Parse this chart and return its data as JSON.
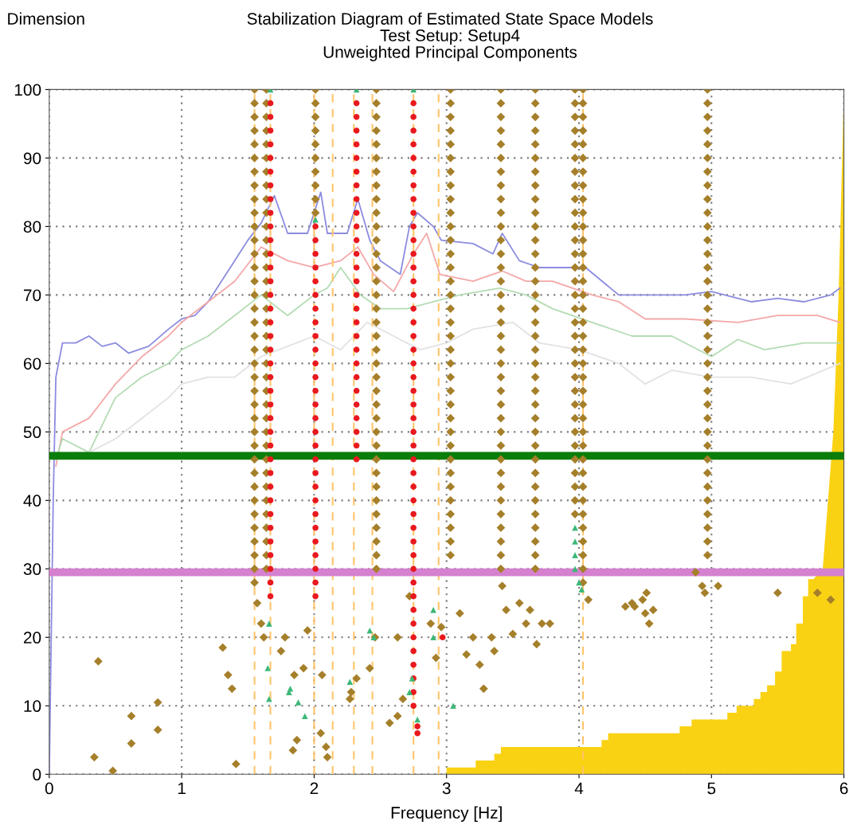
{
  "chart_data": {
    "type": "scatter",
    "title": "Stabilization Diagram of Estimated State Space Models\nTest Setup: Setup4\nUnweighted Principal Components",
    "xlabel": "Frequency [Hz]",
    "ylabel": "Dimension",
    "xlim": [
      0,
      6
    ],
    "ylim": [
      0,
      100
    ],
    "xticks": [
      0,
      1,
      2,
      3,
      4,
      5,
      6
    ],
    "yticks": [
      0,
      10,
      20,
      30,
      40,
      50,
      60,
      70,
      80,
      90,
      100
    ],
    "grid": true,
    "legend": false,
    "ref_lines": [
      {
        "axis": "y",
        "value": 46.5,
        "color": "#0a7d0a",
        "line_style": "solid"
      },
      {
        "axis": "y",
        "value": 29.5,
        "color": "#d680d0",
        "line_style": "solid"
      },
      {
        "axis": "x",
        "value": 1.55,
        "color": "#ffc468",
        "line_style": "dashed"
      },
      {
        "axis": "x",
        "value": 1.67,
        "color": "#ffc468",
        "line_style": "dashed"
      },
      {
        "axis": "x",
        "value": 2.0,
        "color": "#ffc468",
        "line_style": "dashed"
      },
      {
        "axis": "x",
        "value": 2.14,
        "color": "#ffc468",
        "line_style": "dashed"
      },
      {
        "axis": "x",
        "value": 2.3,
        "color": "#ffc468",
        "line_style": "dashed"
      },
      {
        "axis": "x",
        "value": 2.44,
        "color": "#ffc468",
        "line_style": "dashed"
      },
      {
        "axis": "x",
        "value": 2.75,
        "color": "#ffc468",
        "line_style": "dashed"
      },
      {
        "axis": "x",
        "value": 2.94,
        "color": "#ffc468",
        "line_style": "dashed"
      },
      {
        "axis": "x",
        "value": 4.03,
        "color": "#ffc468",
        "line_style": "dashed"
      }
    ],
    "series": [
      {
        "type": "area",
        "color": "#fad214",
        "x": [
          3.0,
          3.22,
          3.22,
          3.36,
          3.36,
          3.41,
          3.41,
          4.17,
          4.17,
          4.22,
          4.22,
          4.76,
          4.76,
          4.85,
          4.85,
          5.12,
          5.12,
          5.19,
          5.19,
          5.32,
          5.32,
          5.37,
          5.37,
          5.42,
          5.42,
          5.48,
          5.48,
          5.53,
          5.53,
          5.6,
          5.6,
          5.64,
          5.64,
          5.69,
          5.69,
          5.73,
          5.73,
          5.77,
          5.84,
          5.88,
          5.92,
          5.96,
          6.0
        ],
        "values": [
          1,
          1,
          2,
          2,
          3,
          3,
          4,
          4,
          5,
          5,
          6,
          6,
          7,
          7,
          8,
          8,
          9,
          9,
          10,
          10,
          11,
          11,
          12,
          12,
          13,
          13,
          15,
          15,
          18,
          18,
          19,
          19,
          22,
          22,
          26,
          26,
          28.5,
          28.5,
          30,
          40,
          50,
          70,
          100
        ]
      },
      {
        "type": "line",
        "color": "#8c8ce0",
        "x": [
          0,
          0.03,
          0.05,
          0.1,
          0.2,
          0.3,
          0.4,
          0.5,
          0.6,
          0.75,
          0.9,
          1.0,
          1.1,
          1.2,
          1.3,
          1.4,
          1.5,
          1.6,
          1.7,
          1.8,
          1.95,
          2.05,
          2.1,
          2.25,
          2.33,
          2.42,
          2.5,
          2.65,
          2.72,
          2.78,
          2.9,
          2.96,
          3.2,
          3.35,
          3.42,
          3.55,
          3.7,
          3.9,
          4.05,
          4.3,
          4.5,
          4.8,
          5.0,
          5.3,
          5.5,
          5.7,
          5.9,
          5.97
        ],
        "values": [
          0,
          40,
          58,
          63,
          63,
          64,
          62.5,
          63,
          61.5,
          62.5,
          65,
          66.5,
          67,
          69,
          72,
          75,
          78,
          80.5,
          84.5,
          79,
          79,
          85,
          79,
          79,
          84,
          78,
          75,
          73,
          80,
          82,
          80,
          78,
          77.5,
          76,
          79,
          75,
          74,
          74,
          74,
          70,
          70,
          70,
          70.5,
          69,
          69.5,
          69,
          70,
          71
        ]
      },
      {
        "type": "line",
        "color": "#f4a8a8",
        "x": [
          0.05,
          0.1,
          0.3,
          0.5,
          0.7,
          0.9,
          1.0,
          1.2,
          1.4,
          1.6,
          1.8,
          2.0,
          2.2,
          2.33,
          2.45,
          2.6,
          2.75,
          2.85,
          2.95,
          3.2,
          3.42,
          3.6,
          3.8,
          4.1,
          4.3,
          4.5,
          4.8,
          5.2,
          5.5,
          5.8,
          5.97
        ],
        "values": [
          45,
          50,
          52,
          57,
          61,
          64,
          66,
          69,
          72,
          77,
          75,
          74,
          75,
          77,
          73,
          70.5,
          76,
          79,
          73,
          72,
          73.5,
          72,
          72,
          70,
          69,
          66.5,
          66.5,
          66,
          67,
          67,
          66
        ]
      },
      {
        "type": "line",
        "color": "#b4dcb4",
        "x": [
          0.05,
          0.1,
          0.3,
          0.5,
          0.7,
          0.9,
          1.0,
          1.2,
          1.4,
          1.6,
          1.8,
          2.0,
          2.1,
          2.2,
          2.35,
          2.5,
          2.7,
          2.9,
          3.1,
          3.4,
          3.6,
          3.8,
          4.1,
          4.4,
          4.7,
          5.0,
          5.2,
          5.4,
          5.7,
          5.97
        ],
        "values": [
          46,
          49,
          47,
          55,
          58,
          60,
          62,
          64,
          67,
          70,
          67,
          70,
          71,
          74,
          70,
          68,
          68,
          69,
          70,
          71,
          70,
          68,
          66,
          64,
          64,
          61,
          63.5,
          62,
          63,
          63
        ]
      },
      {
        "type": "line",
        "color": "#e2e2e2",
        "x": [
          0.05,
          0.3,
          0.5,
          0.7,
          0.9,
          1.0,
          1.2,
          1.4,
          1.6,
          1.8,
          2.0,
          2.2,
          2.4,
          2.6,
          2.8,
          3.0,
          3.2,
          3.5,
          3.7,
          4.0,
          4.3,
          4.5,
          4.7,
          5.0,
          5.3,
          5.6,
          5.97
        ],
        "values": [
          46,
          47,
          49,
          52,
          55,
          57,
          58,
          58,
          61,
          62.5,
          64,
          62,
          66,
          64,
          62,
          63,
          65,
          66,
          63,
          62,
          60,
          57,
          59,
          58,
          58,
          57,
          60
        ]
      },
      {
        "type": "scatter",
        "marker": "diamond",
        "color": "#a57f2a",
        "x": [
          1.55,
          1.55,
          1.55,
          1.55,
          1.55,
          1.55,
          1.55,
          1.55,
          1.55,
          1.55,
          1.55,
          1.55,
          1.55,
          1.55,
          1.55,
          1.55,
          1.55,
          1.55,
          1.55,
          1.55,
          1.55,
          1.55,
          1.55,
          1.55,
          1.55,
          1.55,
          1.55,
          1.55,
          1.55,
          1.55,
          1.55,
          1.55,
          1.55,
          1.55,
          1.55,
          1.55,
          1.55
        ],
        "values": [
          28,
          30,
          32,
          34,
          36,
          38,
          40,
          42,
          44,
          46,
          48,
          50,
          52,
          54,
          56,
          58,
          60,
          62,
          64,
          66,
          68,
          70,
          72,
          74,
          76,
          78,
          80,
          82,
          84,
          86,
          88,
          90,
          92,
          94,
          96,
          98,
          100
        ]
      },
      {
        "type": "scatter",
        "marker": "diamond",
        "color": "#a57f2a",
        "x": [
          1.64,
          1.64,
          1.64,
          1.64,
          1.64,
          1.64,
          1.64,
          1.64,
          1.64,
          1.64,
          1.64,
          1.64,
          1.64,
          1.64,
          1.64,
          1.64,
          1.64,
          1.64,
          1.64,
          1.64,
          1.64,
          1.64,
          1.64,
          1.64,
          1.64,
          1.64,
          1.64,
          1.64,
          1.64,
          1.64,
          1.64,
          1.64,
          1.64,
          1.64,
          1.64,
          1.64
        ],
        "values": [
          30,
          32,
          34,
          36,
          38,
          40,
          42,
          44,
          46,
          48,
          50,
          52,
          54,
          56,
          58,
          60,
          62,
          64,
          66,
          68,
          70,
          72,
          74,
          76,
          78,
          80,
          82,
          84,
          86,
          88,
          90,
          92,
          94,
          96,
          98,
          100
        ]
      },
      {
        "type": "scatter",
        "marker": "diamond",
        "color": "#a57f2a",
        "x": [
          2.01,
          2.01,
          2.01,
          2.01,
          2.01,
          2.01,
          2.01,
          2.01,
          2.01,
          2.01
        ],
        "values": [
          82,
          84,
          86,
          88,
          90,
          92,
          94,
          96,
          98,
          100
        ]
      },
      {
        "type": "scatter",
        "marker": "diamond",
        "color": "#a57f2a",
        "x": [
          2.47,
          2.47,
          2.47,
          2.47,
          2.47,
          2.47,
          2.47,
          2.47,
          2.47,
          2.47,
          2.47,
          2.47,
          2.47,
          2.47,
          2.47,
          2.47,
          2.47,
          2.47,
          2.47,
          2.47,
          2.47,
          2.47,
          2.47,
          2.47,
          2.47,
          2.47,
          2.47,
          2.47,
          2.47,
          2.47,
          2.47,
          2.47,
          2.47,
          2.47,
          2.47,
          2.47
        ],
        "values": [
          30,
          32,
          34,
          36,
          38,
          40,
          42,
          44,
          46,
          48,
          50,
          52,
          54,
          56,
          58,
          60,
          62,
          64,
          66,
          68,
          70,
          72,
          74,
          76,
          78,
          80,
          82,
          84,
          86,
          88,
          90,
          92,
          94,
          96,
          98,
          100
        ]
      },
      {
        "type": "scatter",
        "marker": "diamond",
        "color": "#a57f2a",
        "x": [
          3.03,
          3.03,
          3.03,
          3.03,
          3.03,
          3.03,
          3.03,
          3.03,
          3.03,
          3.03,
          3.03,
          3.03,
          3.03,
          3.03,
          3.03,
          3.03,
          3.03,
          3.03,
          3.03,
          3.03,
          3.03,
          3.03,
          3.03,
          3.03,
          3.03,
          3.03,
          3.03,
          3.03,
          3.03,
          3.03,
          3.03,
          3.03,
          3.03,
          3.03,
          3.03
        ],
        "values": [
          32,
          34,
          36,
          38,
          40,
          42,
          44,
          46,
          48,
          50,
          52,
          54,
          56,
          58,
          60,
          62,
          64,
          66,
          68,
          70,
          72,
          74,
          76,
          78,
          80,
          82,
          84,
          86,
          88,
          90,
          92,
          94,
          96,
          98,
          100
        ]
      },
      {
        "type": "scatter",
        "marker": "diamond",
        "color": "#a57f2a",
        "x": [
          3.41,
          3.41,
          3.41,
          3.41,
          3.41,
          3.41,
          3.41,
          3.41,
          3.41,
          3.41,
          3.41,
          3.41,
          3.41,
          3.41,
          3.41,
          3.41,
          3.41,
          3.41,
          3.41,
          3.41,
          3.41,
          3.41,
          3.41,
          3.41,
          3.41,
          3.41,
          3.41,
          3.41,
          3.41,
          3.41,
          3.41,
          3.41,
          3.41,
          3.41,
          3.41,
          3.41
        ],
        "values": [
          30,
          32,
          34,
          36,
          38,
          40,
          42,
          44,
          46,
          48,
          50,
          52,
          54,
          56,
          58,
          60,
          62,
          64,
          66,
          68,
          70,
          72,
          74,
          76,
          78,
          80,
          82,
          84,
          86,
          88,
          90,
          92,
          94,
          96,
          98,
          100
        ]
      },
      {
        "type": "scatter",
        "marker": "diamond",
        "color": "#a57f2a",
        "x": [
          3.67,
          3.67,
          3.67,
          3.67,
          3.67,
          3.67,
          3.67,
          3.67,
          3.67,
          3.67,
          3.67,
          3.67,
          3.67,
          3.67,
          3.67,
          3.67,
          3.67,
          3.67,
          3.67,
          3.67,
          3.67,
          3.67,
          3.67,
          3.67,
          3.67,
          3.67,
          3.67,
          3.67,
          3.67,
          3.67,
          3.67,
          3.67,
          3.67,
          3.67,
          3.67,
          3.67
        ],
        "values": [
          30,
          32,
          34,
          36,
          38,
          40,
          42,
          44,
          46,
          48,
          50,
          52,
          54,
          56,
          58,
          60,
          62,
          64,
          66,
          68,
          70,
          72,
          74,
          76,
          78,
          80,
          82,
          84,
          86,
          88,
          90,
          92,
          94,
          96,
          98,
          100
        ]
      },
      {
        "type": "scatter",
        "marker": "diamond",
        "color": "#a57f2a",
        "x": [
          3.97,
          3.97,
          3.97,
          3.97,
          3.97,
          3.97,
          3.97,
          3.97,
          3.97,
          3.97,
          3.97,
          3.97,
          3.97,
          3.97,
          3.97,
          3.97,
          3.97,
          3.97,
          3.97,
          3.97,
          3.97,
          3.97,
          3.97,
          3.97,
          3.97,
          3.97,
          3.97,
          3.97,
          3.97,
          3.97,
          3.97,
          3.97
        ],
        "values": [
          38,
          40,
          42,
          44,
          46,
          48,
          50,
          52,
          54,
          56,
          58,
          60,
          62,
          64,
          66,
          68,
          70,
          72,
          74,
          76,
          78,
          80,
          82,
          84,
          86,
          88,
          90,
          92,
          94,
          96,
          98,
          100
        ]
      },
      {
        "type": "scatter",
        "marker": "diamond",
        "color": "#a57f2a",
        "x": [
          4.03,
          4.03,
          4.03,
          4.03,
          4.03,
          4.03,
          4.03,
          4.03,
          4.03,
          4.03,
          4.03,
          4.03,
          4.03,
          4.03,
          4.03,
          4.03,
          4.03,
          4.03,
          4.03,
          4.03,
          4.03,
          4.03,
          4.03,
          4.03,
          4.03,
          4.03,
          4.03,
          4.03,
          4.03,
          4.03,
          4.03,
          4.03,
          4.03,
          4.03,
          4.03,
          4.03,
          4.03
        ],
        "values": [
          28,
          30,
          32,
          34,
          36,
          38,
          40,
          42,
          44,
          46,
          48,
          50,
          52,
          54,
          56,
          58,
          60,
          62,
          64,
          66,
          68,
          70,
          72,
          74,
          76,
          78,
          80,
          82,
          84,
          86,
          88,
          90,
          92,
          94,
          96,
          98,
          100
        ]
      },
      {
        "type": "scatter",
        "marker": "diamond",
        "color": "#a57f2a",
        "x": [
          4.97,
          4.97,
          4.97,
          4.97,
          4.97,
          4.97,
          4.97,
          4.97,
          4.97,
          4.97,
          4.97,
          4.97,
          4.97,
          4.97,
          4.97,
          4.97,
          4.97,
          4.97,
          4.97,
          4.97,
          4.97,
          4.97,
          4.97,
          4.97,
          4.97,
          4.97,
          4.97,
          4.97,
          4.97,
          4.97,
          4.97,
          4.97,
          4.97,
          4.97,
          4.97
        ],
        "values": [
          32,
          34,
          36,
          38,
          40,
          42,
          44,
          46,
          48,
          50,
          52,
          54,
          56,
          58,
          60,
          62,
          64,
          66,
          68,
          70,
          72,
          74,
          76,
          78,
          80,
          82,
          84,
          86,
          88,
          90,
          92,
          94,
          96,
          98,
          100
        ]
      },
      {
        "type": "scatter",
        "marker": "diamond",
        "color": "#a57f2a",
        "x": [
          0.34,
          0.37,
          0.48,
          0.62,
          0.62,
          0.82,
          0.82,
          1.31,
          1.35,
          1.38,
          1.41,
          1.57,
          1.6,
          1.62,
          1.78,
          1.75,
          1.85,
          1.84,
          1.87,
          1.95,
          1.92,
          2.06,
          2.05,
          2.09,
          2.1,
          2.28,
          2.27,
          2.32,
          2.42,
          2.46,
          2.57,
          2.63,
          2.67,
          2.63,
          2.72,
          2.88,
          2.92,
          2.96,
          3.1,
          3.15,
          3.2,
          3.25,
          3.28,
          3.36,
          3.34,
          3.42,
          3.55,
          3.6,
          3.63,
          3.68,
          3.72,
          3.78,
          3.45,
          3.5,
          4.07,
          4.35,
          4.42,
          4.48,
          4.5,
          4.53,
          4.51,
          4.4,
          4.56,
          4.88,
          4.93,
          4.95,
          5.05,
          5.5,
          5.8,
          5.9
        ],
        "values": [
          2.5,
          16.5,
          0.5,
          8.5,
          4.5,
          10.5,
          6.5,
          18.5,
          14.5,
          12.5,
          1.5,
          25,
          22,
          20,
          20,
          18,
          14.5,
          3.5,
          5,
          21,
          15.5,
          14.5,
          6,
          4,
          2.5,
          12,
          11,
          14,
          15.5,
          20,
          7.5,
          8.5,
          11,
          20,
          26,
          22,
          17,
          21.5,
          23.5,
          17.5,
          20,
          16,
          12.5,
          18,
          20,
          27.5,
          25,
          22,
          24,
          19,
          22,
          22,
          24,
          20.5,
          25.5,
          24.5,
          24.5,
          25.5,
          23.5,
          22,
          26.5,
          25,
          24,
          29.5,
          27.5,
          26.5,
          27.5,
          26.5,
          26.5,
          25.5
        ]
      },
      {
        "type": "scatter",
        "marker": "circle",
        "color": "#e8181e",
        "x": [
          1.67,
          1.67,
          1.67,
          1.67,
          1.67,
          1.67,
          1.67,
          1.67,
          1.67,
          1.67,
          1.67,
          1.67,
          1.67,
          1.67,
          1.67,
          1.67,
          1.67,
          1.67,
          1.67,
          1.67,
          1.67,
          1.67,
          1.67,
          1.67,
          1.67,
          1.67,
          1.67,
          1.67,
          1.67,
          1.67,
          1.67,
          1.67,
          1.67,
          1.67,
          1.67,
          1.67,
          1.67
        ],
        "values": [
          26,
          28,
          30,
          32,
          34,
          36,
          38,
          40,
          42,
          44,
          46,
          48,
          50,
          52,
          54,
          56,
          58,
          60,
          62,
          64,
          66,
          68,
          70,
          72,
          74,
          76,
          78,
          80,
          82,
          84,
          86,
          88,
          90,
          92,
          94,
          96,
          98
        ]
      },
      {
        "type": "scatter",
        "marker": "circle",
        "color": "#e8181e",
        "x": [
          2.01,
          2.01,
          2.01,
          2.01,
          2.01,
          2.01,
          2.01,
          2.01,
          2.01,
          2.01,
          2.01,
          2.01,
          2.01,
          2.01,
          2.01,
          2.01,
          2.01,
          2.01,
          2.01,
          2.01,
          2.01,
          2.01,
          2.01,
          2.01,
          2.01,
          2.01,
          2.01,
          2.01
        ],
        "values": [
          26,
          28,
          30,
          32,
          34,
          36,
          38,
          40,
          42,
          44,
          46,
          48,
          50,
          52,
          54,
          56,
          58,
          60,
          62,
          64,
          66,
          68,
          70,
          72,
          74,
          76,
          78,
          80
        ]
      },
      {
        "type": "scatter",
        "marker": "circle",
        "color": "#e8181e",
        "x": [
          2.32,
          2.32,
          2.32,
          2.32,
          2.32,
          2.32,
          2.32,
          2.32,
          2.32,
          2.32,
          2.32,
          2.32,
          2.32,
          2.32,
          2.32,
          2.32,
          2.32,
          2.32,
          2.32,
          2.32,
          2.32,
          2.32,
          2.32,
          2.32,
          2.32,
          2.32,
          2.32
        ],
        "values": [
          46,
          48,
          50,
          52,
          54,
          56,
          58,
          60,
          62,
          64,
          66,
          68,
          70,
          72,
          74,
          76,
          78,
          80,
          82,
          84,
          86,
          88,
          90,
          92,
          94,
          96,
          98
        ]
      },
      {
        "type": "scatter",
        "marker": "circle",
        "color": "#e8181e",
        "x": [
          2.75,
          2.75,
          2.75,
          2.75,
          2.75,
          2.75,
          2.75,
          2.75,
          2.75,
          2.75,
          2.75,
          2.75,
          2.75,
          2.75,
          2.75,
          2.75,
          2.75,
          2.75,
          2.75,
          2.75,
          2.75,
          2.75,
          2.75,
          2.75,
          2.75,
          2.75,
          2.75,
          2.75,
          2.75,
          2.75,
          2.75,
          2.75,
          2.75,
          2.75,
          2.75,
          2.75,
          2.75,
          2.75,
          2.75,
          2.75,
          2.75,
          2.75,
          2.75,
          2.75,
          2.75,
          2.78,
          2.78,
          2.97
        ],
        "values": [
          10,
          12,
          14,
          16,
          18,
          20,
          22,
          24,
          26,
          28,
          30,
          32,
          34,
          36,
          38,
          40,
          42,
          44,
          46,
          48,
          50,
          52,
          54,
          56,
          58,
          60,
          62,
          64,
          66,
          68,
          70,
          72,
          74,
          76,
          78,
          80,
          82,
          84,
          86,
          88,
          90,
          92,
          94,
          96,
          98,
          6,
          7,
          20
        ]
      },
      {
        "type": "scatter",
        "marker": "triangle",
        "color": "#3cb878",
        "x": [
          1.67,
          2.01,
          2.32,
          2.75,
          1.65,
          1.81,
          1.82,
          1.88,
          1.93,
          2.27,
          2.45,
          2.42,
          2.72,
          2.74,
          2.78,
          2.9,
          2.9,
          3.05,
          1.66,
          1.66,
          3.97,
          3.97,
          3.97,
          3.97,
          4.0,
          4.02
        ],
        "values": [
          100,
          81,
          100,
          100,
          15.5,
          12,
          12.5,
          10.5,
          8.5,
          13.5,
          20,
          21,
          12,
          14,
          8,
          24,
          20,
          10,
          11,
          22,
          36,
          34,
          32,
          30,
          28,
          27
        ]
      }
    ]
  }
}
